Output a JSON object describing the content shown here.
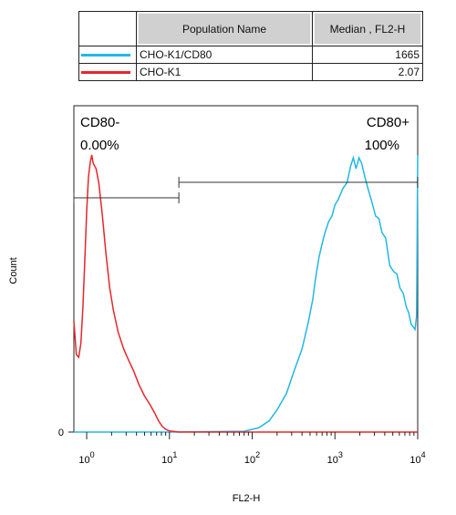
{
  "legend": {
    "headers": [
      "",
      "Population Name",
      "Median , FL2-H"
    ],
    "rows": [
      {
        "name": "CHO-K1/CD80",
        "median": "1665",
        "color": "#22b7e6"
      },
      {
        "name": "CHO-K1",
        "median": "2.07",
        "color": "#e8262a"
      }
    ]
  },
  "chart_data": {
    "type": "line",
    "title": "",
    "xlabel": "FL2-H",
    "ylabel": "Count",
    "x_scale": "log",
    "xlim": [
      0.7,
      10000
    ],
    "x_ticks": [
      {
        "value": 1,
        "base": "10",
        "exp": "0"
      },
      {
        "value": 10,
        "base": "10",
        "exp": "1"
      },
      {
        "value": 100,
        "base": "10",
        "exp": "2"
      },
      {
        "value": 1000,
        "base": "10",
        "exp": "3"
      },
      {
        "value": 10000,
        "base": "10",
        "exp": "4"
      }
    ],
    "y_ticks": [
      "0"
    ],
    "ylim": [
      0,
      100
    ],
    "gates": [
      {
        "label": "CD80-",
        "percent": "0.00%",
        "range": [
          0.7,
          13
        ]
      },
      {
        "label": "CD80+",
        "percent": "100%",
        "range": [
          13,
          10000
        ]
      }
    ],
    "series": [
      {
        "name": "CHO-K1/CD80",
        "color": "#22b7e6",
        "points": [
          [
            0.7,
            0
          ],
          [
            10,
            0
          ],
          [
            80,
            0.3
          ],
          [
            120,
            1.5
          ],
          [
            160,
            4
          ],
          [
            200,
            8
          ],
          [
            260,
            14
          ],
          [
            320,
            22
          ],
          [
            400,
            30
          ],
          [
            480,
            40
          ],
          [
            540,
            48
          ],
          [
            580,
            55
          ],
          [
            640,
            63
          ],
          [
            700,
            68
          ],
          [
            760,
            72
          ],
          [
            840,
            76
          ],
          [
            920,
            78
          ],
          [
            1000,
            82
          ],
          [
            1100,
            84
          ],
          [
            1250,
            88
          ],
          [
            1400,
            90
          ],
          [
            1550,
            96
          ],
          [
            1665,
            99
          ],
          [
            1800,
            95
          ],
          [
            1950,
            99
          ],
          [
            2100,
            97
          ],
          [
            2300,
            92
          ],
          [
            2500,
            88
          ],
          [
            2800,
            83
          ],
          [
            3100,
            78
          ],
          [
            3400,
            77
          ],
          [
            3700,
            72
          ],
          [
            4100,
            70
          ],
          [
            4600,
            60
          ],
          [
            5100,
            58
          ],
          [
            5600,
            57
          ],
          [
            6100,
            52
          ],
          [
            6700,
            50
          ],
          [
            7300,
            45
          ],
          [
            7800,
            43
          ],
          [
            8300,
            39
          ],
          [
            8800,
            38
          ],
          [
            9300,
            37
          ],
          [
            9700,
            42
          ],
          [
            10000,
            100
          ]
        ]
      },
      {
        "name": "CHO-K1",
        "color": "#e8262a",
        "points": [
          [
            0.7,
            40
          ],
          [
            0.75,
            28
          ],
          [
            0.8,
            27
          ],
          [
            0.85,
            32
          ],
          [
            0.9,
            45
          ],
          [
            0.95,
            62
          ],
          [
            1.0,
            80
          ],
          [
            1.05,
            92
          ],
          [
            1.1,
            97
          ],
          [
            1.15,
            100
          ],
          [
            1.2,
            97
          ],
          [
            1.3,
            95
          ],
          [
            1.4,
            90
          ],
          [
            1.55,
            78
          ],
          [
            1.7,
            65
          ],
          [
            1.9,
            52
          ],
          [
            2.1,
            44
          ],
          [
            2.4,
            36
          ],
          [
            2.8,
            30
          ],
          [
            3.2,
            26
          ],
          [
            3.7,
            22
          ],
          [
            4.3,
            17
          ],
          [
            5.0,
            13
          ],
          [
            5.8,
            10
          ],
          [
            6.6,
            7
          ],
          [
            7.4,
            4
          ],
          [
            8.2,
            2
          ],
          [
            9,
            1
          ],
          [
            10,
            0.4
          ],
          [
            13,
            0
          ],
          [
            10000,
            0
          ]
        ]
      }
    ]
  }
}
